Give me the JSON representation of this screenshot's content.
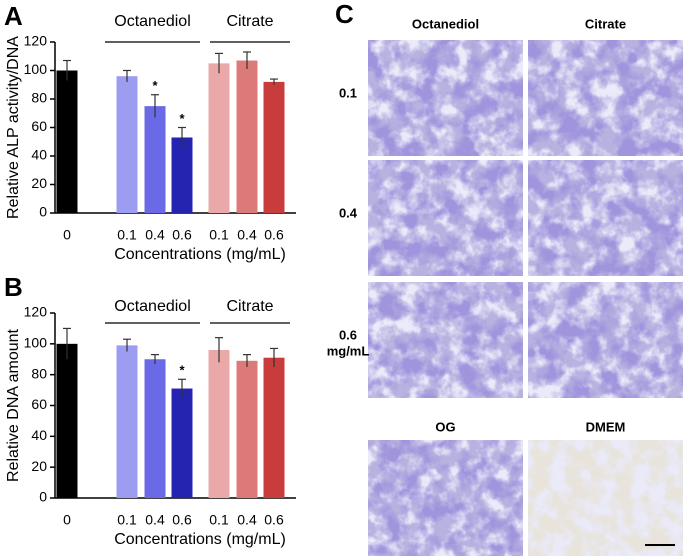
{
  "chart_data": [
    {
      "type": "bar",
      "panel": "A",
      "ylabel": "Relative ALP activity/DNA",
      "xlabel": "Concentrations (mg/mL)",
      "groups": [
        "Octanediol",
        "Citrate"
      ],
      "categories": [
        "0",
        "0.1",
        "0.4",
        "0.6",
        "0.1",
        "0.4",
        "0.6"
      ],
      "values": [
        100,
        96,
        75,
        53,
        105,
        107,
        92
      ],
      "errors": [
        7,
        4,
        8,
        7,
        7,
        6,
        2
      ],
      "colors": [
        "#000000",
        "#9c9cf0",
        "#6a6ae6",
        "#2424b0",
        "#eaa8a8",
        "#dc7a7a",
        "#c83c3c"
      ],
      "annotations": [
        {
          "text": "*",
          "index": 2
        },
        {
          "text": "*",
          "index": 3
        }
      ],
      "ylim": [
        0,
        120
      ],
      "yticks": [
        0,
        20,
        40,
        60,
        80,
        100,
        120
      ]
    },
    {
      "type": "bar",
      "panel": "B",
      "ylabel": "Relative DNA amount",
      "xlabel": "Concentrations (mg/mL)",
      "groups": [
        "Octanediol",
        "Citrate"
      ],
      "categories": [
        "0",
        "0.1",
        "0.4",
        "0.6",
        "0.1",
        "0.4",
        "0.6"
      ],
      "values": [
        100,
        99,
        90,
        71,
        96,
        89,
        91
      ],
      "errors": [
        10,
        4,
        3,
        6,
        8,
        4,
        6
      ],
      "colors": [
        "#000000",
        "#9c9cf0",
        "#6a6ae6",
        "#2424b0",
        "#eaa8a8",
        "#dc7a7a",
        "#c83c3c"
      ],
      "annotations": [
        {
          "text": "*",
          "index": 3
        }
      ],
      "ylim": [
        0,
        120
      ],
      "yticks": [
        0,
        20,
        40,
        60,
        80,
        100,
        120
      ]
    }
  ],
  "panel_c": {
    "label": "C",
    "columns": [
      "Octanediol",
      "Citrate"
    ],
    "rows": [
      "0.1",
      "0.4",
      "0.6"
    ],
    "unit": "mg/mL",
    "controls": [
      "OG",
      "DMEM"
    ]
  }
}
